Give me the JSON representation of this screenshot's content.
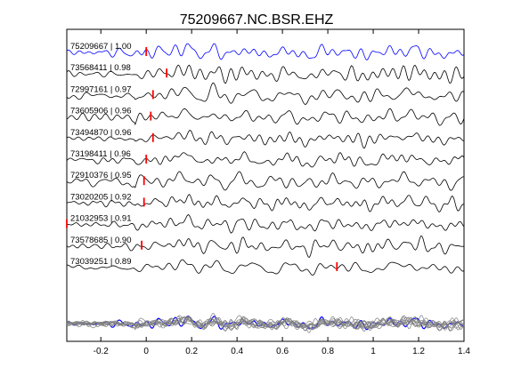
{
  "chart_data": {
    "type": "line",
    "title": "75209667.NC.BSR.EHZ",
    "xlabel": "",
    "ylabel": "",
    "xlim": [
      -0.35,
      1.4
    ],
    "x_ticks": [
      "-0.2",
      "0",
      "0.2",
      "0.4",
      "0.6",
      "0.8",
      "1",
      "1.2",
      "1.4"
    ],
    "x_tick_values": [
      -0.2,
      0,
      0.2,
      0.4,
      0.6,
      0.8,
      1.0,
      1.2,
      1.4
    ],
    "grid": false,
    "series": [
      {
        "name": "75209667 | 1.00",
        "pick_time": 0.0,
        "color": "#0000ff"
      },
      {
        "name": "73568411 | 0.98",
        "pick_time": 0.09,
        "color": "#000000"
      },
      {
        "name": "72997161 | 0.97",
        "pick_time": 0.03,
        "color": "#000000"
      },
      {
        "name": "73605906 | 0.96",
        "pick_time": 0.02,
        "color": "#000000"
      },
      {
        "name": "73494870 | 0.96",
        "pick_time": 0.03,
        "color": "#000000"
      },
      {
        "name": "73198411 | 0.96",
        "pick_time": 0.0,
        "color": "#000000"
      },
      {
        "name": "72910376 | 0.95",
        "pick_time": -0.01,
        "color": "#000000"
      },
      {
        "name": "73020205 | 0.92",
        "pick_time": -0.01,
        "color": "#000000"
      },
      {
        "name": "21032953 | 0.91",
        "pick_time": -0.35,
        "color": "#000000"
      },
      {
        "name": "73578685 | 0.90",
        "pick_time": -0.02,
        "color": "#000000"
      },
      {
        "name": "73039251 | 0.89",
        "pick_time": 0.84,
        "color": "#000000"
      }
    ],
    "pick_color": "#ff0000",
    "stack_color": "#808080",
    "stack_highlight_color": "#0000ff"
  }
}
